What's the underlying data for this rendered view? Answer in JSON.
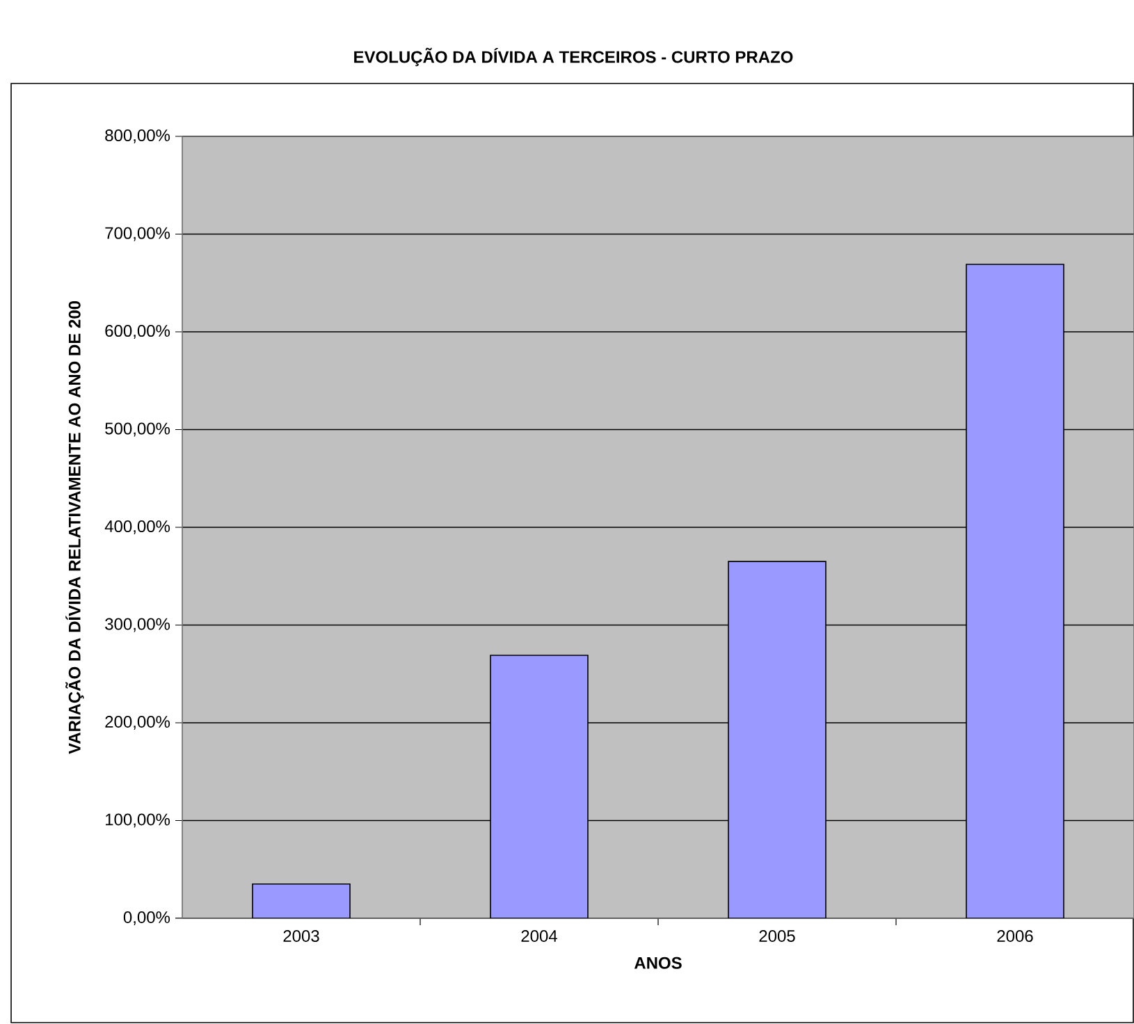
{
  "chart_data": {
    "type": "bar",
    "title": "EVOLUÇÃO DA DÍVIDA A TERCEIROS - CURTO PRAZO",
    "xlabel": "ANOS",
    "ylabel": "VARIAÇÃO DA DÍVIDA RELATIVAMENTE AO ANO DE 200",
    "categories": [
      "2003",
      "2004",
      "2005",
      "2006"
    ],
    "values": [
      35,
      269,
      365,
      669
    ],
    "color": "#9999ff",
    "ylim": [
      0,
      800
    ],
    "yticks": [
      {
        "value": 0,
        "label": "0,00%"
      },
      {
        "value": 100,
        "label": "100,00%"
      },
      {
        "value": 200,
        "label": "200,00%"
      },
      {
        "value": 300,
        "label": "300,00%"
      },
      {
        "value": 400,
        "label": "400,00%"
      },
      {
        "value": 500,
        "label": "500,00%"
      },
      {
        "value": 600,
        "label": "600,00%"
      },
      {
        "value": 700,
        "label": "700,00%"
      },
      {
        "value": 800,
        "label": "800,00%"
      }
    ],
    "grid": "y"
  }
}
